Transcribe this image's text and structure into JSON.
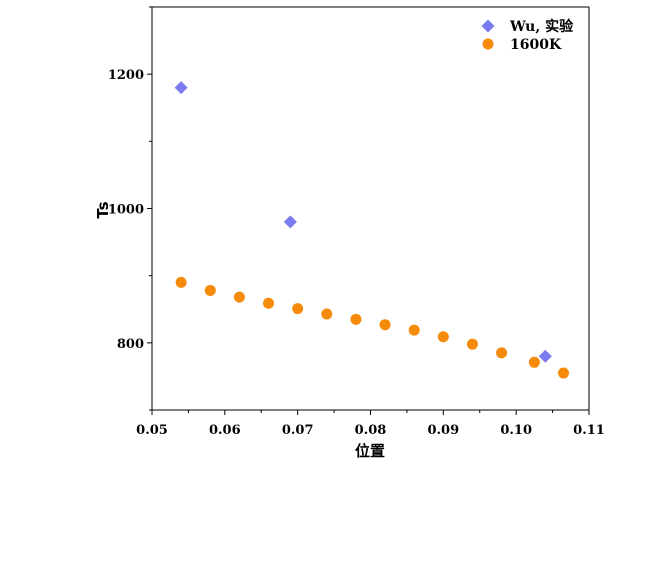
{
  "chart_data": {
    "type": "scatter",
    "xlabel": "位置",
    "ylabel": "Ts",
    "xlim": [
      0.05,
      0.11
    ],
    "ylim": [
      700,
      1300
    ],
    "x_ticks": [
      "0.05",
      "0.06",
      "0.07",
      "0.08",
      "0.09",
      "0.10",
      "0.11"
    ],
    "y_ticks": [
      "800",
      "1000",
      "1200"
    ],
    "grid": false,
    "legend_position": "top-right",
    "series": [
      {
        "name": "Wu, 实验",
        "marker": "diamond",
        "color": "#7B7BF0",
        "points": [
          {
            "x": 0.054,
            "y": 1180
          },
          {
            "x": 0.069,
            "y": 980
          },
          {
            "x": 0.104,
            "y": 780
          }
        ]
      },
      {
        "name": "1600K",
        "marker": "circle",
        "color": "#F58A0B",
        "points": [
          {
            "x": 0.054,
            "y": 890
          },
          {
            "x": 0.058,
            "y": 878
          },
          {
            "x": 0.062,
            "y": 868
          },
          {
            "x": 0.066,
            "y": 859
          },
          {
            "x": 0.07,
            "y": 851
          },
          {
            "x": 0.074,
            "y": 843
          },
          {
            "x": 0.078,
            "y": 835
          },
          {
            "x": 0.082,
            "y": 827
          },
          {
            "x": 0.086,
            "y": 819
          },
          {
            "x": 0.09,
            "y": 809
          },
          {
            "x": 0.094,
            "y": 798
          },
          {
            "x": 0.098,
            "y": 785
          },
          {
            "x": 0.1025,
            "y": 771
          },
          {
            "x": 0.1065,
            "y": 755
          }
        ]
      }
    ]
  }
}
